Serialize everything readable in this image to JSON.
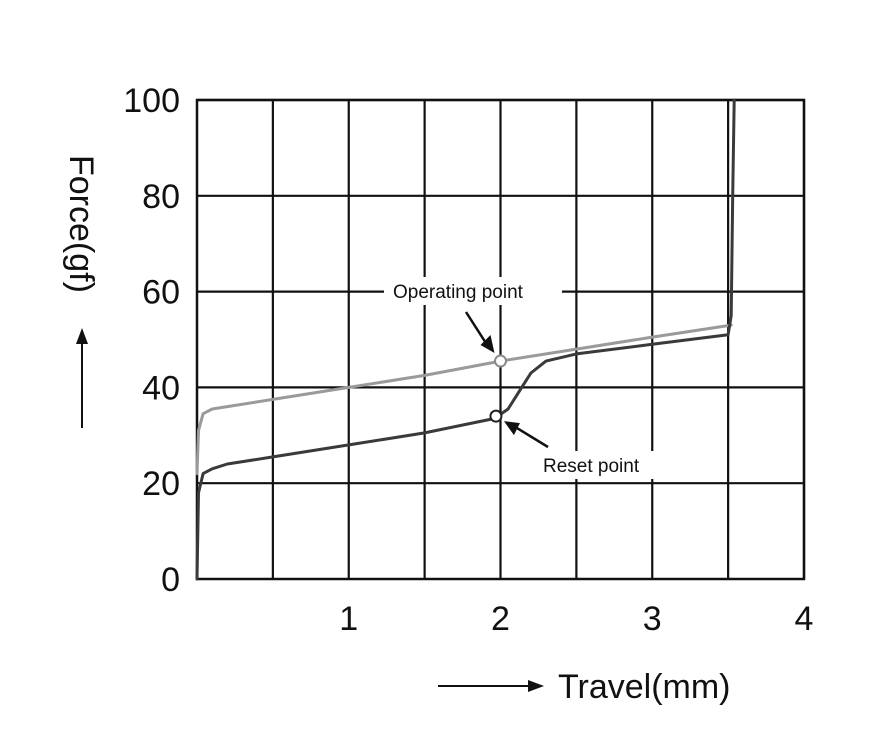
{
  "chart_data": {
    "type": "line",
    "title": "",
    "xlabel": "Travel(mm)",
    "ylabel": "Force(gf)",
    "xlim": [
      0,
      4
    ],
    "ylim": [
      0,
      100
    ],
    "x_ticks": [
      1,
      2,
      3,
      4
    ],
    "y_ticks": [
      0,
      20,
      40,
      60,
      80,
      100
    ],
    "x_gridlines": [
      0.5,
      1,
      1.5,
      2,
      2.5,
      3,
      3.5,
      4
    ],
    "y_gridlines": [
      20,
      40,
      60,
      80,
      100
    ],
    "grid": true,
    "legend": "none",
    "series": [
      {
        "color": "#9a9a9a",
        "x": [
          0,
          0.01,
          0.04,
          0.1,
          0.2,
          0.5,
          1,
          1.5,
          2,
          2.5,
          3,
          3.52
        ],
        "y": [
          22,
          31,
          34.5,
          35.5,
          36,
          37.5,
          40,
          42.5,
          45.5,
          48,
          50.5,
          53
        ]
      },
      {
        "color": "#3a3a3a",
        "x": [
          0,
          0.01,
          0.04,
          0.1,
          0.2,
          0.5,
          1,
          1.5,
          1.96,
          2.05,
          2.12,
          2.2,
          2.3,
          2.5,
          3,
          3.5,
          3.52,
          3.53,
          3.54
        ],
        "y": [
          0,
          18,
          22,
          23,
          24,
          25.5,
          28,
          30.5,
          33.5,
          35.5,
          39,
          43,
          45.5,
          47,
          49,
          51,
          55,
          80,
          100
        ]
      }
    ],
    "annotations": [
      {
        "text": "Operating point",
        "x": 2.0,
        "y": 45.5,
        "color": "#9a9a9a"
      },
      {
        "text": "Reset point",
        "x": 1.97,
        "y": 34.0,
        "color": "#3a3a3a"
      }
    ]
  }
}
